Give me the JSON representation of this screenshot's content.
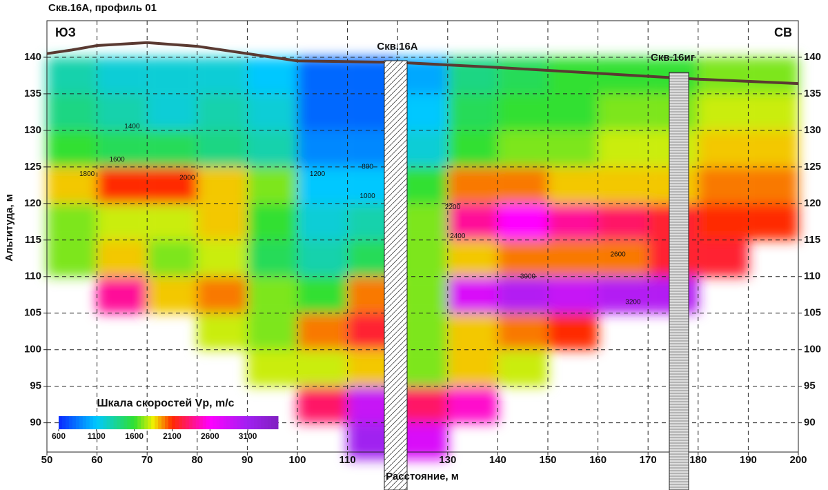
{
  "chart_data": {
    "type": "heatmap",
    "title": "Скв.16А, профиль 01",
    "corner_left": "ЮЗ",
    "corner_right": "СВ",
    "x_label": "Расстояние, м",
    "y_label": "Альтитуда, м",
    "xlim": [
      50,
      200
    ],
    "ylim": [
      86,
      145
    ],
    "xticks": [
      50,
      60,
      70,
      80,
      90,
      100,
      110,
      120,
      130,
      140,
      150,
      160,
      170,
      180,
      190,
      200
    ],
    "yticks": [
      90,
      95,
      100,
      105,
      110,
      115,
      120,
      125,
      130,
      135,
      140
    ],
    "grid": true,
    "x": [
      55,
      65,
      75,
      85,
      95,
      105,
      115,
      125,
      135,
      145,
      155,
      165,
      175,
      185,
      195
    ],
    "y": [
      137.5,
      132.5,
      127.5,
      122.5,
      117.5,
      112.5,
      107.5,
      102.5,
      97.5,
      92.5,
      87.5
    ],
    "cell_width": 10,
    "cell_height": 5,
    "z": [
      [
        1300,
        1200,
        1200,
        1200,
        1100,
        800,
        800,
        1000,
        1400,
        1500,
        1600,
        1600,
        1600,
        1700,
        1700
      ],
      [
        1400,
        1300,
        1200,
        1300,
        1200,
        800,
        800,
        1100,
        1500,
        1600,
        1600,
        1700,
        1700,
        1800,
        1800
      ],
      [
        1600,
        1500,
        1500,
        1400,
        1300,
        900,
        900,
        1200,
        1600,
        1700,
        1700,
        1800,
        1800,
        1900,
        1900
      ],
      [
        1900,
        2100,
        2100,
        1900,
        1700,
        1100,
        1100,
        1600,
        2000,
        2000,
        1900,
        1900,
        1900,
        2000,
        2000
      ],
      [
        1700,
        1800,
        1800,
        1900,
        1600,
        1200,
        1300,
        1700,
        2400,
        2600,
        2400,
        2300,
        2200,
        2100,
        2100
      ],
      [
        1700,
        1900,
        1700,
        1800,
        1500,
        1300,
        1500,
        1700,
        1900,
        2000,
        2000,
        2000,
        2200,
        2200,
        null
      ],
      [
        null,
        2400,
        1900,
        2000,
        1700,
        1600,
        2000,
        1700,
        2800,
        3000,
        2900,
        3000,
        3000,
        null,
        null
      ],
      [
        null,
        null,
        null,
        1800,
        1700,
        2000,
        2200,
        1700,
        1900,
        2000,
        2100,
        null,
        null,
        null,
        null
      ],
      [
        null,
        null,
        null,
        null,
        1800,
        1800,
        1900,
        1700,
        1900,
        1800,
        null,
        null,
        null,
        null,
        null
      ],
      [
        null,
        null,
        null,
        null,
        null,
        2300,
        2900,
        2300,
        2500,
        null,
        null,
        null,
        null,
        null,
        null
      ],
      [
        null,
        null,
        null,
        null,
        null,
        null,
        3100,
        2800,
        null,
        null,
        null,
        null,
        null,
        null,
        null
      ]
    ],
    "colorscale": [
      [
        600,
        "#0a28ff"
      ],
      [
        1100,
        "#00c8ff"
      ],
      [
        1600,
        "#30e030"
      ],
      [
        1850,
        "#f0f000"
      ],
      [
        2100,
        "#ff2a00"
      ],
      [
        2600,
        "#ff00ff"
      ],
      [
        3100,
        "#a020f0"
      ],
      [
        3500,
        "#8020c0"
      ]
    ],
    "colorbar": {
      "title": "Шкала скоростей Vp, m/c",
      "range": [
        600,
        3500
      ],
      "ticks": [
        600,
        1100,
        1600,
        2100,
        2600,
        3100
      ]
    },
    "surface": {
      "color": "#5a3a32",
      "x": [
        50,
        55,
        60,
        70,
        80,
        90,
        100,
        120,
        140,
        160,
        180,
        200
      ],
      "values": [
        140.5,
        141,
        141.6,
        142,
        141.5,
        140.5,
        139.5,
        139.3,
        138.6,
        137.8,
        137,
        136.4
      ]
    },
    "wells": [
      "Скв.16А",
      "Скв.16иг"
    ],
    "contour_labels": [
      {
        "value": 1400,
        "x": 67,
        "y": 130.5
      },
      {
        "value": 1600,
        "x": 64,
        "y": 126
      },
      {
        "value": 2000,
        "x": 78,
        "y": 123.5
      },
      {
        "value": 1200,
        "x": 104,
        "y": 124
      },
      {
        "value": 1000,
        "x": 114,
        "y": 121
      },
      {
        "value": 800,
        "x": 114,
        "y": 125
      },
      {
        "value": 2200,
        "x": 131,
        "y": 119.5
      },
      {
        "value": 2400,
        "x": 132,
        "y": 115.5
      },
      {
        "value": 3000,
        "x": 146,
        "y": 110
      },
      {
        "value": 3200,
        "x": 167,
        "y": 106.5
      },
      {
        "value": 2600,
        "x": 164,
        "y": 113
      },
      {
        "value": 1800,
        "x": 58,
        "y": 124
      }
    ]
  }
}
